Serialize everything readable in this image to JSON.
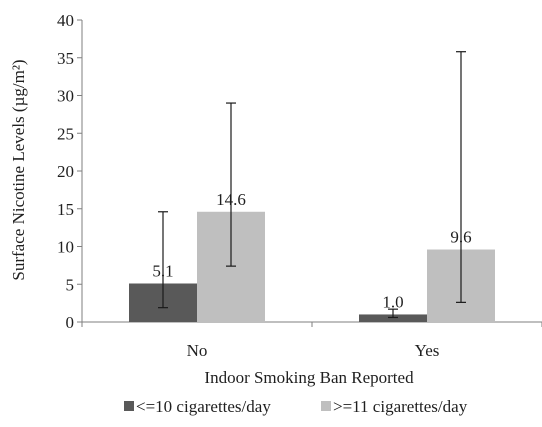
{
  "chart_data": {
    "type": "bar",
    "categories": [
      "No",
      "Yes"
    ],
    "series": [
      {
        "name": "<=10 cigarettes/day",
        "color": "#595959",
        "values": [
          5.1,
          1.0
        ],
        "labels": [
          "5.1",
          "1.0"
        ],
        "error_low": [
          1.9,
          0.6
        ],
        "error_high": [
          14.6,
          1.7
        ]
      },
      {
        "name": ">=11 cigarettes/day",
        "color": "#bfbfbf",
        "values": [
          14.6,
          9.6
        ],
        "labels": [
          "14.6",
          "9.6"
        ],
        "error_low": [
          7.4,
          2.6
        ],
        "error_high": [
          29.0,
          35.8
        ]
      }
    ],
    "xlabel": "Indoor Smoking Ban Reported",
    "ylabel": "Surface Nicotine Levels (µg/m²)",
    "ylim": [
      0,
      40
    ],
    "yticks": [
      "0",
      "5",
      "10",
      "15",
      "20",
      "25",
      "30",
      "35",
      "40"
    ],
    "grid": false,
    "legend_position": "bottom"
  }
}
